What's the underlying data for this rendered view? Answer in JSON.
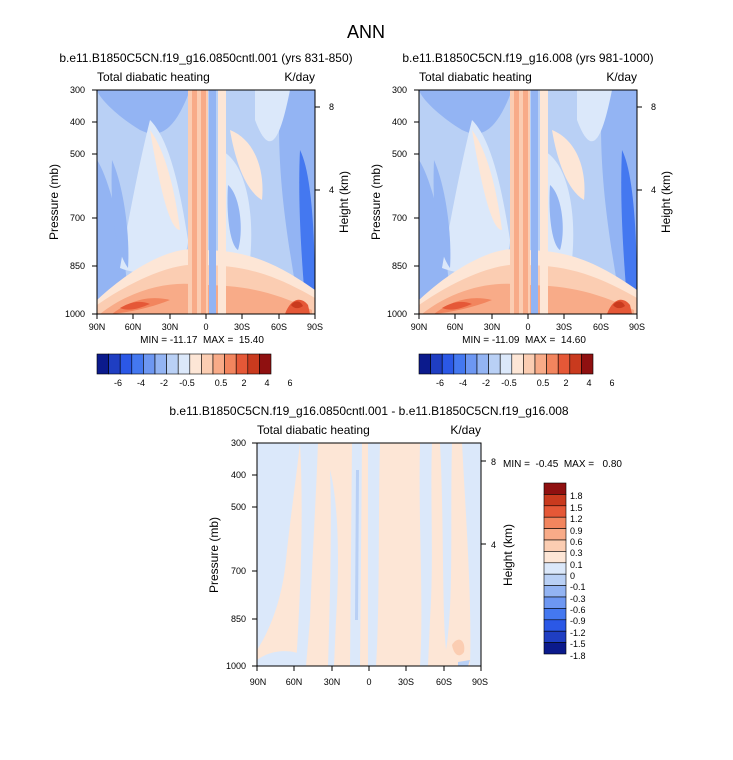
{
  "title": "ANN",
  "colors": {
    "scale_a": [
      "#0b1a8c",
      "#1f3ec2",
      "#2b58e6",
      "#4478f0",
      "#6d97f2",
      "#93b4f3",
      "#b9d0f5",
      "#dbe8fa",
      "#fde6d6",
      "#fbcdb2",
      "#f8ab88",
      "#f2855e",
      "#e55837",
      "#c93a1e",
      "#8f1010"
    ],
    "scale_b": [
      "#0b1a8c",
      "#1f3ec2",
      "#2b58e6",
      "#4478f0",
      "#6d97f2",
      "#93b4f3",
      "#b9d0f5",
      "#dbe8fa",
      "#fde6d6",
      "#fbcdb2",
      "#f8ab88",
      "#f2855e",
      "#e55837",
      "#c93a1e",
      "#8f1010"
    ]
  },
  "colorbar_a_labels": [
    "-6",
    "-4",
    "-2",
    "-0.5",
    "0.5",
    "2",
    "4",
    "6"
  ],
  "colorbar_b_labels": [
    "1.8",
    "1.5",
    "1.2",
    "0.9",
    "0.6",
    "0.3",
    "0.1",
    "0",
    "-0.1",
    "-0.3",
    "-0.6",
    "-0.9",
    "-1.2",
    "-1.5",
    "-1.8"
  ],
  "chart_data": [
    {
      "type": "heatmap",
      "title": "b.e11.B1850C5CN.f19_g16.0850cntl.001 (yrs 831-850)",
      "subtitle_left": "Total diabatic heating",
      "subtitle_right": "K/day",
      "xlabel": "",
      "ylabel": "Pressure (mb)",
      "ylabel_right": "Height (km)",
      "x_ticks": [
        "90N",
        "60N",
        "30N",
        "0",
        "30S",
        "60S",
        "90S"
      ],
      "y_ticks": [
        "300",
        "400",
        "500",
        "700",
        "850",
        "1000"
      ],
      "y_right_ticks": [
        "8",
        "4"
      ],
      "min": -11.17,
      "max": 15.4,
      "stats_text": "MIN = -11.17  MAX =  15.40"
    },
    {
      "type": "heatmap",
      "title": "b.e11.B1850C5CN.f19_g16.008 (yrs 981-1000)",
      "subtitle_left": "Total diabatic heating",
      "subtitle_right": "K/day",
      "xlabel": "",
      "ylabel": "Pressure (mb)",
      "ylabel_right": "Height (km)",
      "x_ticks": [
        "90N",
        "60N",
        "30N",
        "0",
        "30S",
        "60S",
        "90S"
      ],
      "y_ticks": [
        "300",
        "400",
        "500",
        "700",
        "850",
        "1000"
      ],
      "y_right_ticks": [
        "8",
        "4"
      ],
      "min": -11.09,
      "max": 14.6,
      "stats_text": "MIN = -11.09  MAX =  14.60"
    },
    {
      "type": "heatmap",
      "title": "b.e11.B1850C5CN.f19_g16.0850cntl.001 - b.e11.B1850C5CN.f19_g16.008",
      "subtitle_left": "Total diabatic heating",
      "subtitle_right": "K/day",
      "xlabel": "",
      "ylabel": "Pressure (mb)",
      "ylabel_right": "Height (km)",
      "x_ticks": [
        "90N",
        "60N",
        "30N",
        "0",
        "30S",
        "60S",
        "90S"
      ],
      "y_ticks": [
        "300",
        "400",
        "500",
        "700",
        "850",
        "1000"
      ],
      "y_right_ticks": [
        "8",
        "4"
      ],
      "min": -0.45,
      "max": 0.8,
      "stats_text": "MIN =  -0.45  MAX =   0.80"
    }
  ]
}
